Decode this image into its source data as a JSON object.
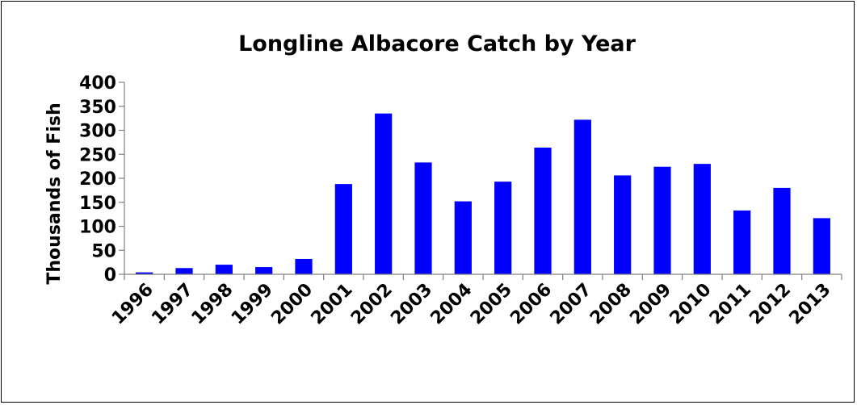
{
  "chart_data": {
    "type": "bar",
    "title": "Longline Albacore Catch by Year",
    "xlabel": "",
    "ylabel": "Thousands of Fish",
    "categories": [
      "1996",
      "1997",
      "1998",
      "1999",
      "2000",
      "2001",
      "2002",
      "2003",
      "2004",
      "2005",
      "2006",
      "2007",
      "2008",
      "2009",
      "2010",
      "2011",
      "2012",
      "2013"
    ],
    "values": [
      4,
      13,
      20,
      15,
      32,
      188,
      335,
      233,
      152,
      193,
      264,
      322,
      206,
      224,
      230,
      133,
      180,
      117
    ],
    "ylim": [
      0,
      400
    ],
    "yticks": [
      "0",
      "50",
      "100",
      "150",
      "200",
      "250",
      "300",
      "350",
      "400"
    ],
    "bar_color": "#0000ff",
    "grid": false,
    "legend": "none"
  }
}
